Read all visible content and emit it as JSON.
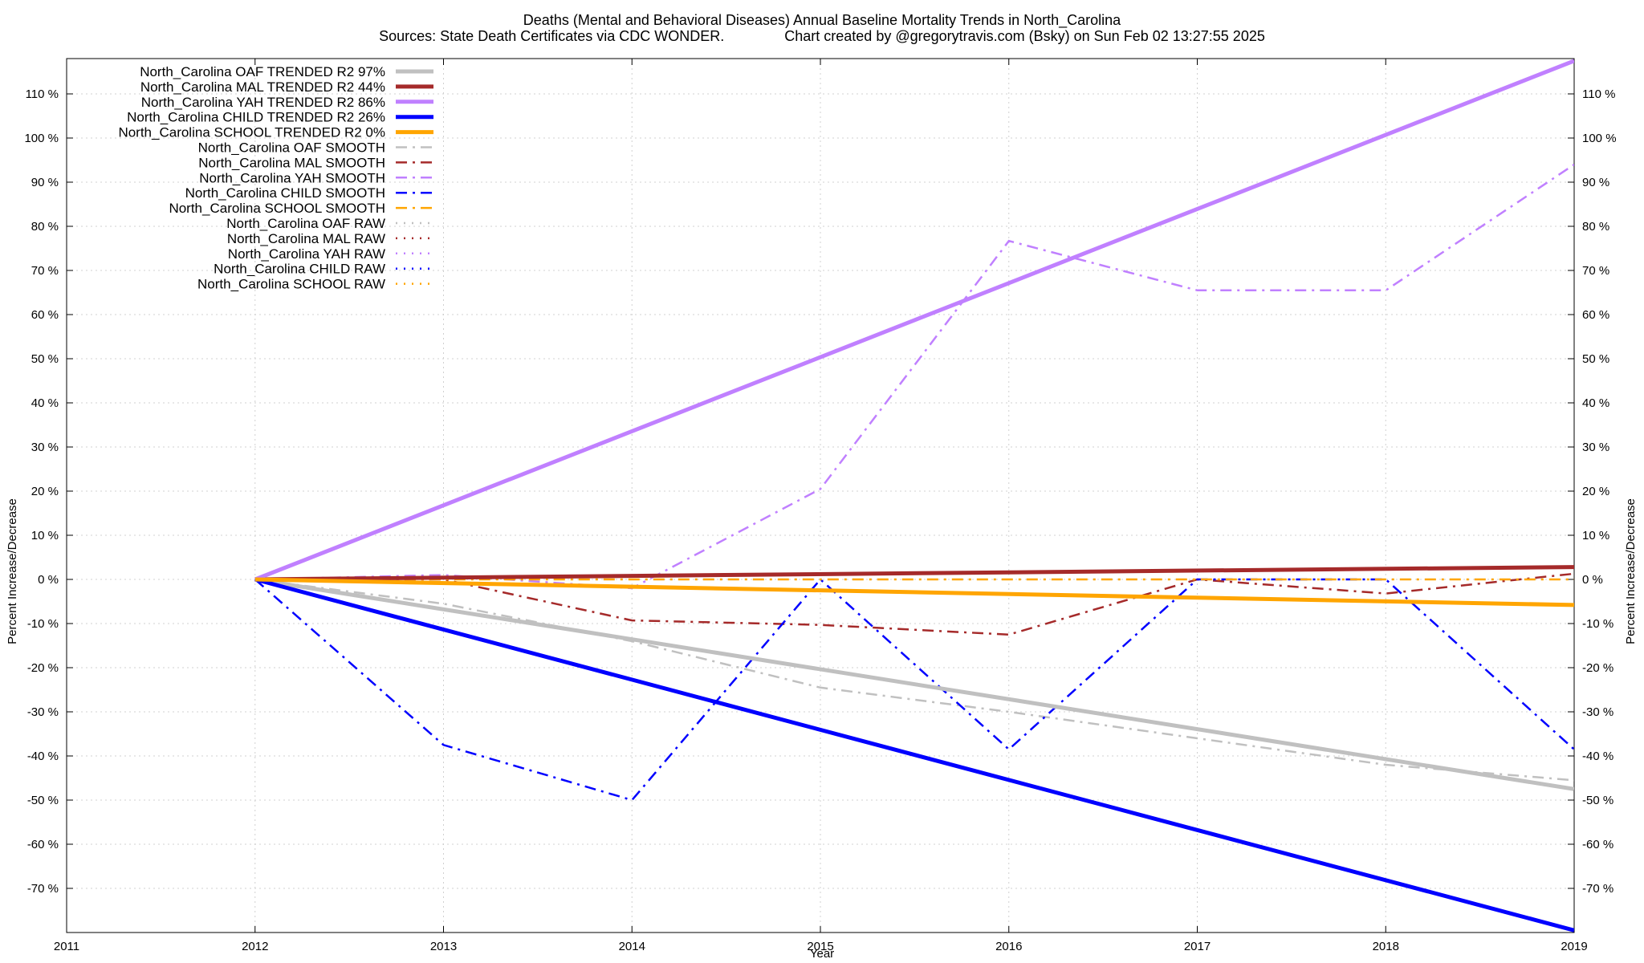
{
  "chart_data": {
    "type": "line",
    "title": "Deaths (Mental and Behavioral Diseases)  Annual Baseline Mortality Trends in North_Carolina",
    "subtitle": "Sources: State Death Certificates via CDC WONDER.               Chart created by @gregorytravis.com (Bsky) on Sun Feb 02 13:27:55 2025",
    "xlabel": "Year",
    "ylabel": "Percent Increase/Decrease",
    "y2label": "Percent Increase/Decrease",
    "xlim": [
      2011,
      2019
    ],
    "ylim": [
      -80,
      118
    ],
    "xticks": [
      2011,
      2012,
      2013,
      2014,
      2015,
      2016,
      2017,
      2018,
      2019
    ],
    "yticks": [
      -70,
      -60,
      -50,
      -40,
      -30,
      -20,
      -10,
      0,
      10,
      20,
      30,
      40,
      50,
      60,
      70,
      80,
      90,
      100,
      110
    ],
    "ytick_suffix": " %",
    "grid": true,
    "legend_position": "top-left",
    "series": [
      {
        "name": "North_Carolina OAF TRENDED R2  97%",
        "style": "solid",
        "color": "#c0c0c0",
        "x": [
          2012,
          2019
        ],
        "y": [
          0,
          -47.5
        ]
      },
      {
        "name": "North_Carolina MAL TRENDED R2  44%",
        "style": "solid",
        "color": "#a52a2a",
        "x": [
          2012,
          2019
        ],
        "y": [
          0,
          2.8
        ]
      },
      {
        "name": "North_Carolina YAH TRENDED R2  86%",
        "style": "solid",
        "color": "#c080ff",
        "x": [
          2012,
          2019
        ],
        "y": [
          0,
          117.5
        ]
      },
      {
        "name": "North_Carolina CHILD TRENDED R2  26%",
        "style": "solid",
        "color": "#0000ff",
        "x": [
          2012,
          2019
        ],
        "y": [
          0,
          -79.5
        ]
      },
      {
        "name": "North_Carolina SCHOOL TRENDED R2   0%",
        "style": "solid",
        "color": "#ffa500",
        "x": [
          2012,
          2019
        ],
        "y": [
          0,
          -5.8
        ]
      },
      {
        "name": "North_Carolina OAF SMOOTH",
        "style": "dashdot",
        "color": "#c0c0c0",
        "x": [
          2012,
          2013,
          2014,
          2015,
          2016,
          2017,
          2018,
          2019
        ],
        "y": [
          0,
          -5.5,
          -14,
          -24.5,
          -30,
          -36,
          -42,
          -45.5
        ]
      },
      {
        "name": "North_Carolina MAL SMOOTH",
        "style": "dashdot",
        "color": "#a52a2a",
        "x": [
          2012,
          2013,
          2014,
          2015,
          2016,
          2017,
          2018,
          2019
        ],
        "y": [
          0,
          0,
          -9.3,
          -10.3,
          -12.5,
          0,
          -3.2,
          1.3
        ]
      },
      {
        "name": "North_Carolina YAH SMOOTH",
        "style": "dashdot",
        "color": "#c080ff",
        "x": [
          2012,
          2013,
          2014,
          2015,
          2016,
          2017,
          2018,
          2019
        ],
        "y": [
          0,
          1,
          -2,
          20.5,
          76.7,
          65.5,
          65.5,
          94
        ]
      },
      {
        "name": "North_Carolina CHILD SMOOTH",
        "style": "dashdot",
        "color": "#0000ff",
        "x": [
          2012,
          2013,
          2014,
          2015,
          2016,
          2017,
          2018,
          2019
        ],
        "y": [
          0,
          -37.5,
          -50,
          0,
          -38.5,
          0,
          0,
          -38.5
        ]
      },
      {
        "name": "North_Carolina SCHOOL SMOOTH",
        "style": "dashdot",
        "color": "#ffa500",
        "x": [
          2012,
          2013,
          2014,
          2015,
          2016,
          2017,
          2018,
          2019
        ],
        "y": [
          0,
          0,
          0,
          0,
          0,
          0,
          0,
          0
        ]
      },
      {
        "name": "North_Carolina OAF RAW",
        "style": "dotted",
        "color": "#c0c0c0",
        "x": [],
        "y": []
      },
      {
        "name": "North_Carolina MAL RAW",
        "style": "dotted",
        "color": "#a52a2a",
        "x": [],
        "y": []
      },
      {
        "name": "North_Carolina YAH RAW",
        "style": "dotted",
        "color": "#c080ff",
        "x": [],
        "y": []
      },
      {
        "name": "North_Carolina CHILD RAW",
        "style": "dotted",
        "color": "#0000ff",
        "x": [],
        "y": []
      },
      {
        "name": "North_Carolina SCHOOL RAW",
        "style": "dotted",
        "color": "#ffa500",
        "x": [],
        "y": []
      }
    ]
  }
}
